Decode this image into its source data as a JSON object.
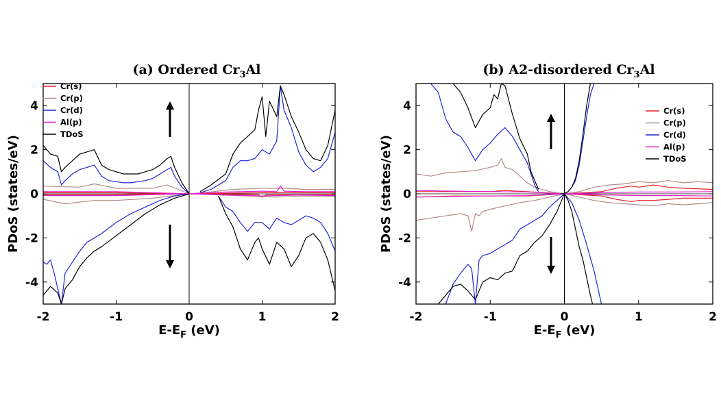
{
  "chart_data": [
    {
      "type": "line",
      "title": {
        "main": "(a) Ordered Cr",
        "sub": "3",
        "tail": "Al"
      },
      "xlabel": {
        "main": "E-E",
        "sub": "F",
        "tail": " (eV)"
      },
      "ylabel": "PDoS (states/eV)",
      "xlim": [
        -2,
        2
      ],
      "ylim": [
        -5,
        5
      ],
      "xticks": [
        -2,
        -1,
        0,
        1,
        2
      ],
      "yticks": [
        -4,
        -2,
        0,
        2,
        4
      ],
      "legend": [
        "Cr(s)",
        "Cr(p)",
        "Cr(d)",
        "Al(p)",
        "TDoS"
      ],
      "colors": {
        "Cr(s)": "#e8202a",
        "Cr(p)": "#b08c88",
        "Cr(d)": "#1f25d6",
        "Al(p)": "#e020c8",
        "TDoS": "#000000"
      },
      "series": [
        {
          "name": "TDoS",
          "spin": "up",
          "x": [
            -2,
            -1.9,
            -1.8,
            -1.75,
            -1.7,
            -1.6,
            -1.5,
            -1.4,
            -1.3,
            -1.2,
            -1.1,
            -1.0,
            -0.9,
            -0.8,
            -0.7,
            -0.6,
            -0.5,
            -0.4,
            -0.3,
            -0.25,
            -0.2,
            -0.1,
            0
          ],
          "y": [
            2.2,
            1.8,
            1.7,
            1.0,
            1.2,
            1.5,
            1.8,
            1.9,
            2.0,
            1.3,
            1.1,
            1.0,
            0.9,
            0.9,
            0.9,
            1.0,
            1.1,
            1.3,
            1.6,
            1.7,
            1.2,
            0.5,
            0
          ]
        },
        {
          "name": "TDoS",
          "spin": "up",
          "x": [
            0.15,
            0.3,
            0.5,
            0.6,
            0.7,
            0.8,
            0.9,
            0.95,
            1.0,
            1.05,
            1.1,
            1.2,
            1.25,
            1.3,
            1.4,
            1.5,
            1.6,
            1.7,
            1.8,
            1.9,
            2.0
          ],
          "y": [
            0.1,
            0.4,
            0.9,
            1.8,
            2.3,
            2.6,
            2.9,
            3.8,
            4.4,
            2.6,
            4.2,
            3.5,
            4.9,
            4.5,
            3.5,
            2.8,
            2.0,
            1.6,
            1.5,
            2.2,
            3.8
          ]
        },
        {
          "name": "TDoS",
          "spin": "down",
          "x": [
            -2,
            -1.9,
            -1.8,
            -1.75,
            -1.7,
            -1.6,
            -1.5,
            -1.4,
            -1.3,
            -1.2,
            -1.0,
            -0.8,
            -0.6,
            -0.4,
            -0.2,
            0
          ],
          "y": [
            -4.6,
            -4.2,
            -4.5,
            -5.0,
            -4.3,
            -3.9,
            -3.3,
            -2.9,
            -2.6,
            -2.4,
            -1.9,
            -1.4,
            -0.9,
            -0.5,
            -0.2,
            0
          ]
        },
        {
          "name": "TDoS",
          "spin": "down",
          "x": [
            0.4,
            0.5,
            0.6,
            0.7,
            0.8,
            0.9,
            0.95,
            1.0,
            1.1,
            1.2,
            1.3,
            1.4,
            1.5,
            1.6,
            1.7,
            1.8,
            1.9,
            2.0
          ],
          "y": [
            -0.1,
            -0.9,
            -1.5,
            -2.5,
            -3.0,
            -2.2,
            -2.0,
            -2.5,
            -3.2,
            -2.2,
            -2.5,
            -3.3,
            -2.8,
            -2.0,
            -1.8,
            -2.2,
            -3.0,
            -4.4
          ]
        },
        {
          "name": "Cr(d)",
          "spin": "up",
          "x": [
            -2,
            -1.9,
            -1.8,
            -1.75,
            -1.7,
            -1.6,
            -1.5,
            -1.4,
            -1.3,
            -1.2,
            -1.1,
            -1.0,
            -0.9,
            -0.8,
            -0.7,
            -0.6,
            -0.5,
            -0.4,
            -0.3,
            -0.25,
            -0.2,
            -0.1,
            0
          ],
          "y": [
            1.5,
            1.2,
            1.0,
            0.4,
            0.6,
            0.9,
            1.1,
            1.2,
            1.3,
            0.8,
            0.6,
            0.55,
            0.5,
            0.5,
            0.55,
            0.6,
            0.7,
            0.9,
            1.1,
            1.2,
            0.8,
            0.3,
            0
          ]
        },
        {
          "name": "Cr(d)",
          "spin": "up",
          "x": [
            0.15,
            0.3,
            0.5,
            0.6,
            0.7,
            0.8,
            0.9,
            1.0,
            1.1,
            1.2,
            1.25,
            1.3,
            1.4,
            1.5,
            1.6,
            1.7,
            1.8,
            1.9,
            2.0
          ],
          "y": [
            0.05,
            0.2,
            0.6,
            1.2,
            1.5,
            1.5,
            1.6,
            2.0,
            1.8,
            2.4,
            4.9,
            3.8,
            3.0,
            1.9,
            1.3,
            1.0,
            1.2,
            1.6,
            2.8
          ]
        },
        {
          "name": "Cr(d)",
          "spin": "down",
          "x": [
            -2,
            -1.95,
            -1.9,
            -1.85,
            -1.8,
            -1.75,
            -1.7,
            -1.6,
            -1.5,
            -1.4,
            -1.3,
            -1.2,
            -1.0,
            -0.8,
            -0.6,
            -0.4,
            -0.2,
            0
          ],
          "y": [
            -3.1,
            -3.2,
            -3.0,
            -3.6,
            -4.3,
            -5.0,
            -3.6,
            -3.1,
            -2.6,
            -2.2,
            -2.0,
            -1.8,
            -1.3,
            -0.9,
            -0.6,
            -0.3,
            -0.1,
            0
          ]
        },
        {
          "name": "Cr(d)",
          "spin": "down",
          "x": [
            0.4,
            0.5,
            0.6,
            0.7,
            0.8,
            0.9,
            1.0,
            1.1,
            1.2,
            1.3,
            1.4,
            1.5,
            1.6,
            1.7,
            1.8,
            1.9,
            2.0
          ],
          "y": [
            -0.1,
            -0.6,
            -0.8,
            -1.3,
            -1.7,
            -1.3,
            -1.3,
            -1.6,
            -1.1,
            -1.3,
            -1.4,
            -1.2,
            -1.0,
            -1.1,
            -1.3,
            -1.8,
            -2.6
          ]
        },
        {
          "name": "Cr(p)",
          "spin": "up",
          "x": [
            -2,
            -1.5,
            -1.3,
            -1.0,
            -0.5,
            -0.3,
            0,
            0.2,
            0.6,
            1.0,
            1.3,
            1.6,
            2.0
          ],
          "y": [
            0.35,
            0.3,
            0.45,
            0.25,
            0.25,
            0.4,
            0,
            0.05,
            0.2,
            0.25,
            0.25,
            0.2,
            0.2
          ]
        },
        {
          "name": "Cr(p)",
          "spin": "down",
          "x": [
            -2,
            -1.7,
            -1.3,
            -1.0,
            -0.5,
            0,
            0.4,
            0.8,
            1.2,
            1.6,
            2.0
          ],
          "y": [
            -0.25,
            -0.45,
            -0.3,
            -0.3,
            -0.2,
            0,
            -0.05,
            -0.1,
            -0.15,
            -0.1,
            -0.12
          ]
        },
        {
          "name": "Al(p)",
          "spin": "up",
          "x": [
            -2,
            -1.0,
            0,
            0.5,
            1.0,
            1.2,
            1.25,
            1.3,
            1.6,
            2.0
          ],
          "y": [
            0.1,
            0.1,
            0,
            0.08,
            0.12,
            0.1,
            0.35,
            0.12,
            0.1,
            0.1
          ]
        },
        {
          "name": "Al(p)",
          "spin": "down",
          "x": [
            -2,
            -1.0,
            0,
            0.5,
            1.0,
            1.5,
            2.0
          ],
          "y": [
            -0.08,
            -0.08,
            0,
            -0.05,
            -0.1,
            -0.06,
            -0.08
          ]
        },
        {
          "name": "Cr(s)",
          "spin": "up",
          "x": [
            -2,
            -1.0,
            0,
            1.0,
            2.0
          ],
          "y": [
            0.05,
            0.05,
            0,
            0.05,
            0.05
          ]
        },
        {
          "name": "Cr(s)",
          "spin": "down",
          "x": [
            -2,
            -1.0,
            0,
            0.95,
            1.0,
            1.05,
            2.0
          ],
          "y": [
            -0.04,
            -0.04,
            0,
            -0.05,
            -0.15,
            -0.05,
            -0.04
          ]
        }
      ]
    },
    {
      "type": "line",
      "title": {
        "main": "(b) A2-disordered Cr",
        "sub": "3",
        "tail": "Al"
      },
      "xlabel": {
        "main": "E-E",
        "sub": "F",
        "tail": " (eV)"
      },
      "ylabel": "PDoS (states/eV)",
      "xlim": [
        -2,
        2
      ],
      "ylim": [
        -5,
        5
      ],
      "xticks": [
        -2,
        -1,
        0,
        1,
        2
      ],
      "yticks": [
        -4,
        -2,
        0,
        2,
        4
      ],
      "legend": [
        "Cr(s)",
        "Cr(p)",
        "Cr(d)",
        "Al(p)",
        "TDoS"
      ],
      "colors": {
        "Cr(s)": "#e8202a",
        "Cr(p)": "#b08c88",
        "Cr(d)": "#1f25d6",
        "Al(p)": "#e020c8",
        "TDoS": "#000000"
      },
      "series": [
        {
          "name": "TDoS",
          "spin": "up",
          "x": [
            -1.5,
            -1.4,
            -1.3,
            -1.2,
            -1.1,
            -1.0,
            -0.95,
            -0.9,
            -0.85,
            -0.8,
            -0.7,
            -0.6,
            -0.5,
            -0.45,
            -0.4,
            -0.35
          ],
          "y": [
            5.0,
            4.6,
            3.9,
            3.0,
            3.6,
            3.9,
            4.5,
            4.3,
            5.0,
            4.9,
            3.6,
            2.5,
            1.8,
            1.0,
            0.6,
            0.2
          ]
        },
        {
          "name": "TDoS",
          "spin": "up",
          "x": [
            -0.05,
            0,
            0.05,
            0.1,
            0.15,
            0.2,
            0.25,
            0.3,
            0.35
          ],
          "y": [
            0,
            0.02,
            0.1,
            0.3,
            0.7,
            1.5,
            2.7,
            4.0,
            5.0
          ]
        },
        {
          "name": "TDoS",
          "spin": "down",
          "x": [
            -1.7,
            -1.6,
            -1.5,
            -1.4,
            -1.3,
            -1.2,
            -1.1,
            -1.0,
            -0.9,
            -0.8,
            -0.7,
            -0.6,
            -0.5,
            -0.4,
            -0.3,
            -0.2,
            -0.1,
            0
          ],
          "y": [
            -5.0,
            -4.6,
            -4.2,
            -4.1,
            -4.4,
            -4.8,
            -4.0,
            -3.8,
            -3.9,
            -3.6,
            -3.5,
            -2.8,
            -2.6,
            -2.2,
            -1.9,
            -1.4,
            -0.8,
            0
          ]
        },
        {
          "name": "TDoS",
          "spin": "down",
          "x": [
            0,
            0.05,
            0.1,
            0.15,
            0.2,
            0.25,
            0.3,
            0.35,
            0.38
          ],
          "y": [
            0,
            -0.3,
            -0.8,
            -1.6,
            -2.4,
            -3.0,
            -3.8,
            -4.6,
            -5.0
          ]
        },
        {
          "name": "Cr(d)",
          "spin": "up",
          "x": [
            -1.8,
            -1.7,
            -1.6,
            -1.5,
            -1.4,
            -1.3,
            -1.2,
            -1.1,
            -1.0,
            -0.9,
            -0.8,
            -0.7,
            -0.6,
            -0.5,
            -0.45,
            -0.4,
            -0.35
          ],
          "y": [
            5.0,
            4.6,
            3.4,
            2.8,
            2.6,
            2.1,
            1.5,
            2.0,
            2.3,
            2.7,
            3.0,
            2.6,
            2.0,
            1.4,
            0.9,
            0.4,
            0.1
          ]
        },
        {
          "name": "Cr(d)",
          "spin": "up",
          "x": [
            -0.05,
            0,
            0.05,
            0.1,
            0.15,
            0.2,
            0.25,
            0.3,
            0.35,
            0.4
          ],
          "y": [
            0,
            0.01,
            0.1,
            0.3,
            0.6,
            1.3,
            2.4,
            3.5,
            4.5,
            5.0
          ]
        },
        {
          "name": "Cr(d)",
          "spin": "down",
          "x": [
            -1.6,
            -1.5,
            -1.4,
            -1.3,
            -1.25,
            -1.2,
            -1.15,
            -1.1,
            -1.0,
            -0.9,
            -0.8,
            -0.7,
            -0.6,
            -0.5,
            -0.4,
            -0.3,
            -0.2,
            -0.1,
            0
          ],
          "y": [
            -5.0,
            -4.1,
            -3.6,
            -3.2,
            -3.4,
            -5.0,
            -3.0,
            -2.8,
            -2.7,
            -2.5,
            -2.3,
            -2.1,
            -1.6,
            -1.4,
            -1.2,
            -1.0,
            -0.6,
            -0.3,
            0
          ]
        },
        {
          "name": "Cr(d)",
          "spin": "down",
          "x": [
            0,
            0.1,
            0.2,
            0.3,
            0.4,
            0.5
          ],
          "y": [
            0,
            -0.4,
            -1.2,
            -2.3,
            -3.5,
            -5.0
          ]
        },
        {
          "name": "Cr(p)",
          "spin": "up",
          "x": [
            -2,
            -1.8,
            -1.6,
            -1.4,
            -1.2,
            -1.0,
            -0.9,
            -0.85,
            -0.8,
            -0.7,
            -0.6,
            -0.5,
            -0.4,
            -0.2,
            0,
            0.2,
            0.4,
            0.6,
            0.8,
            1.0,
            1.2,
            1.4,
            1.6,
            1.8,
            2.0
          ],
          "y": [
            0.9,
            0.8,
            0.95,
            1.0,
            1.05,
            1.2,
            1.3,
            1.6,
            1.2,
            1.1,
            0.8,
            0.5,
            0.3,
            0.1,
            0,
            0.1,
            0.3,
            0.4,
            0.45,
            0.55,
            0.5,
            0.6,
            0.5,
            0.55,
            0.5
          ]
        },
        {
          "name": "Cr(p)",
          "spin": "down",
          "x": [
            -2,
            -1.8,
            -1.6,
            -1.4,
            -1.3,
            -1.25,
            -1.2,
            -1.15,
            -1.1,
            -1.0,
            -0.8,
            -0.6,
            -0.4,
            -0.2,
            0,
            0.2,
            0.4,
            0.6,
            0.8,
            1.0,
            1.2,
            1.4,
            1.6,
            1.8,
            2.0
          ],
          "y": [
            -1.2,
            -1.1,
            -1.0,
            -0.9,
            -1.0,
            -1.7,
            -0.9,
            -1.0,
            -0.8,
            -0.7,
            -0.55,
            -0.4,
            -0.3,
            -0.15,
            0,
            -0.15,
            -0.3,
            -0.4,
            -0.45,
            -0.5,
            -0.55,
            -0.45,
            -0.5,
            -0.45,
            -0.4
          ]
        },
        {
          "name": "Cr(s)",
          "spin": "up",
          "x": [
            -2,
            -1.5,
            -1.0,
            -0.8,
            -0.5,
            0,
            0.5,
            0.7,
            0.9,
            1.0,
            1.2,
            1.4,
            1.6,
            2.0
          ],
          "y": [
            0.1,
            0.1,
            0.1,
            0.15,
            0.1,
            0,
            0.1,
            0.25,
            0.35,
            0.3,
            0.4,
            0.3,
            0.25,
            0.2
          ]
        },
        {
          "name": "Cr(s)",
          "spin": "down",
          "x": [
            -2,
            -1.5,
            -1.0,
            -0.5,
            0,
            0.5,
            0.7,
            0.9,
            1.0,
            1.2,
            1.4,
            1.6,
            2.0
          ],
          "y": [
            -0.15,
            -0.1,
            -0.1,
            -0.1,
            0,
            -0.1,
            -0.25,
            -0.35,
            -0.3,
            -0.3,
            -0.25,
            -0.2,
            -0.2
          ]
        },
        {
          "name": "Al(p)",
          "spin": "up",
          "x": [
            -2,
            -1.5,
            -1.0,
            -0.5,
            0,
            0.5,
            1.0,
            1.5,
            2.0
          ],
          "y": [
            0.15,
            0.12,
            0.1,
            0.08,
            0,
            0.05,
            0.08,
            0.08,
            0.1
          ]
        },
        {
          "name": "Al(p)",
          "spin": "down",
          "x": [
            -2,
            -1.5,
            -1.0,
            -0.5,
            0,
            0.5,
            1.0,
            1.5,
            2.0
          ],
          "y": [
            -0.15,
            -0.12,
            -0.1,
            -0.08,
            0,
            -0.05,
            -0.08,
            -0.08,
            -0.1
          ]
        }
      ]
    }
  ]
}
